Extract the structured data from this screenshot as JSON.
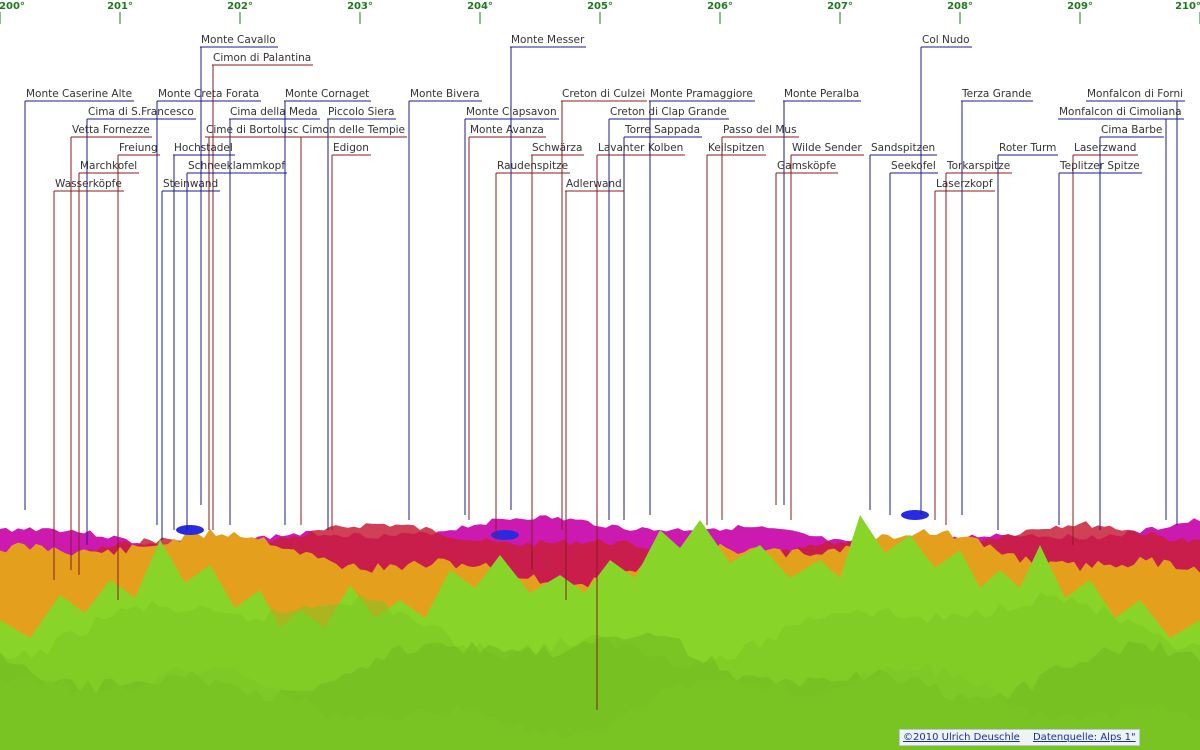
{
  "ticks": [
    {
      "label": "200°",
      "deg": 200
    },
    {
      "label": "201°",
      "deg": 201
    },
    {
      "label": "202°",
      "deg": 202
    },
    {
      "label": "203°",
      "deg": 203
    },
    {
      "label": "204°",
      "deg": 204
    },
    {
      "label": "205°",
      "deg": 205
    },
    {
      "label": "206°",
      "deg": 206
    },
    {
      "label": "207°",
      "deg": 207
    },
    {
      "label": "208°",
      "deg": 208
    },
    {
      "label": "209°",
      "deg": 209
    },
    {
      "label": "210°",
      "deg": 210
    }
  ],
  "peaks": [
    {
      "name": "Monte Cavallo",
      "color": "#1c1c8c"
    },
    {
      "name": "Cimon di Palantina",
      "color": "#8b1c1c"
    },
    {
      "name": "Monte Caserine Alte",
      "color": "#1c1c8c"
    },
    {
      "name": "Monte Creta Forata",
      "color": "#1c1c8c"
    },
    {
      "name": "Monte Cornaget",
      "color": "#1c1c8c"
    },
    {
      "name": "Cima di S.Francesco",
      "color": "#1c1c8c"
    },
    {
      "name": "Cima della Meda",
      "color": "#1c1c8c"
    },
    {
      "name": "Piccolo Siera",
      "color": "#1c1c8c"
    },
    {
      "name": "Vetta Fornezze",
      "color": "#8b1c1c"
    },
    {
      "name": "Cime di Bortolusc",
      "color": "#8b1c1c"
    },
    {
      "name": "Cimon delle Tempie",
      "color": "#8b1c1c"
    },
    {
      "name": "Freiung",
      "color": "#8b1c1c"
    },
    {
      "name": "Hochstadel",
      "color": "#1c1c8c"
    },
    {
      "name": "Edigon",
      "color": "#8b1c1c"
    },
    {
      "name": "Marchkofel",
      "color": "#8b1c1c"
    },
    {
      "name": "Schneeklammkopf",
      "color": "#1c1c8c"
    },
    {
      "name": "Wasserköpfe",
      "color": "#8b1c1c"
    },
    {
      "name": "Steinwand",
      "color": "#1c1c8c"
    },
    {
      "name": "Monte Messer",
      "color": "#1c1c8c"
    },
    {
      "name": "Monte Bivera",
      "color": "#1c1c8c"
    },
    {
      "name": "Monte Clapsavon",
      "color": "#1c1c8c"
    },
    {
      "name": "Monte Avanza",
      "color": "#8b1c1c"
    },
    {
      "name": "Creton di Culzei",
      "color": "#8b1c1c"
    },
    {
      "name": "Monte Pramaggiore",
      "color": "#1c1c8c"
    },
    {
      "name": "Creton di Clap Grande",
      "color": "#1c1c8c"
    },
    {
      "name": "Torre Sappada",
      "color": "#1c1c8c"
    },
    {
      "name": "Schwärza",
      "color": "#8b1c1c"
    },
    {
      "name": "Lavanter Kolben",
      "color": "#8b1c1c"
    },
    {
      "name": "Raudenspitze",
      "color": "#8b1c1c"
    },
    {
      "name": "Adlerwand",
      "color": "#8b1c1c"
    },
    {
      "name": "Monte Peralba",
      "color": "#1c1c8c"
    },
    {
      "name": "Passo del Mus",
      "color": "#8b1c1c"
    },
    {
      "name": "Keilspitzen",
      "color": "#8b1c1c"
    },
    {
      "name": "Wilde Sender",
      "color": "#8b1c1c"
    },
    {
      "name": "Gamsköpfe",
      "color": "#8b1c1c"
    },
    {
      "name": "Col Nudo",
      "color": "#1c1c8c"
    },
    {
      "name": "Sandspitzen",
      "color": "#1c1c8c"
    },
    {
      "name": "Seekofel",
      "color": "#1c1c8c"
    },
    {
      "name": "Terza Grande",
      "color": "#1c1c8c"
    },
    {
      "name": "Roter Turm",
      "color": "#1c1c8c"
    },
    {
      "name": "Torkarspitze",
      "color": "#8b1c1c"
    },
    {
      "name": "Laserzkopf",
      "color": "#8b1c1c"
    },
    {
      "name": "Monfalcon di Forni",
      "color": "#1c1c8c"
    },
    {
      "name": "Monfalcon di Cimoliana",
      "color": "#1c1c8c"
    },
    {
      "name": "Cima Barbe",
      "color": "#1c1c8c"
    },
    {
      "name": "Laserzwand",
      "color": "#8b1c1c"
    },
    {
      "name": "Teplitzer Spitze",
      "color": "#1c1c8c"
    }
  ],
  "terrain_colors": {
    "far_magenta": "#cc1ab0",
    "far_red": "#c81e3a",
    "mid_orange": "#e4a01c",
    "near_green": "#88d428",
    "blue": "#2a2ae0"
  },
  "footer": {
    "copyright": "©2010 Ulrich Deuschle",
    "source": "Datenquelle: Alps 1\""
  }
}
